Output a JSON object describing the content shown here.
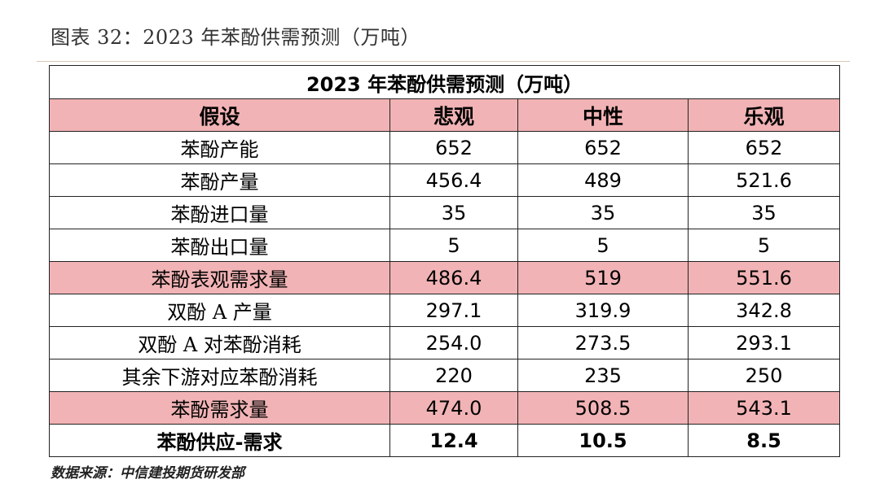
{
  "caption": "图表 32：2023 年苯酚供需预测（万吨）",
  "table": {
    "title": "2023 年苯酚供需预测（万吨）",
    "headers": [
      "假设",
      "悲观",
      "中性",
      "乐观"
    ],
    "rows": [
      {
        "label": "苯酚产能",
        "values": [
          "652",
          "652",
          "652"
        ]
      },
      {
        "label": "苯酚产量",
        "values": [
          "456.4",
          "489",
          "521.6"
        ]
      },
      {
        "label": "苯酚进口量",
        "values": [
          "35",
          "35",
          "35"
        ]
      },
      {
        "label": "苯酚出口量",
        "values": [
          "5",
          "5",
          "5"
        ]
      },
      {
        "label": "苯酚表观需求量",
        "values": [
          "486.4",
          "519",
          "551.6"
        ]
      },
      {
        "label": "双酚 A 产量",
        "values": [
          "297.1",
          "319.9",
          "342.8"
        ]
      },
      {
        "label": "双酚 A 对苯酚消耗",
        "values": [
          "254.0",
          "273.5",
          "293.1"
        ]
      },
      {
        "label": "其余下游对应苯酚消耗",
        "values": [
          "220",
          "235",
          "250"
        ]
      },
      {
        "label": "苯酚需求量",
        "values": [
          "474.0",
          "508.5",
          "543.1"
        ]
      },
      {
        "label": "苯酚供应-需求",
        "values": [
          "12.4",
          "10.5",
          "8.5"
        ]
      }
    ]
  },
  "source": "数据来源：中信建投期货研发部",
  "colors": {
    "highlight": "#f1b3b5",
    "rule": "#d8c7b5"
  }
}
